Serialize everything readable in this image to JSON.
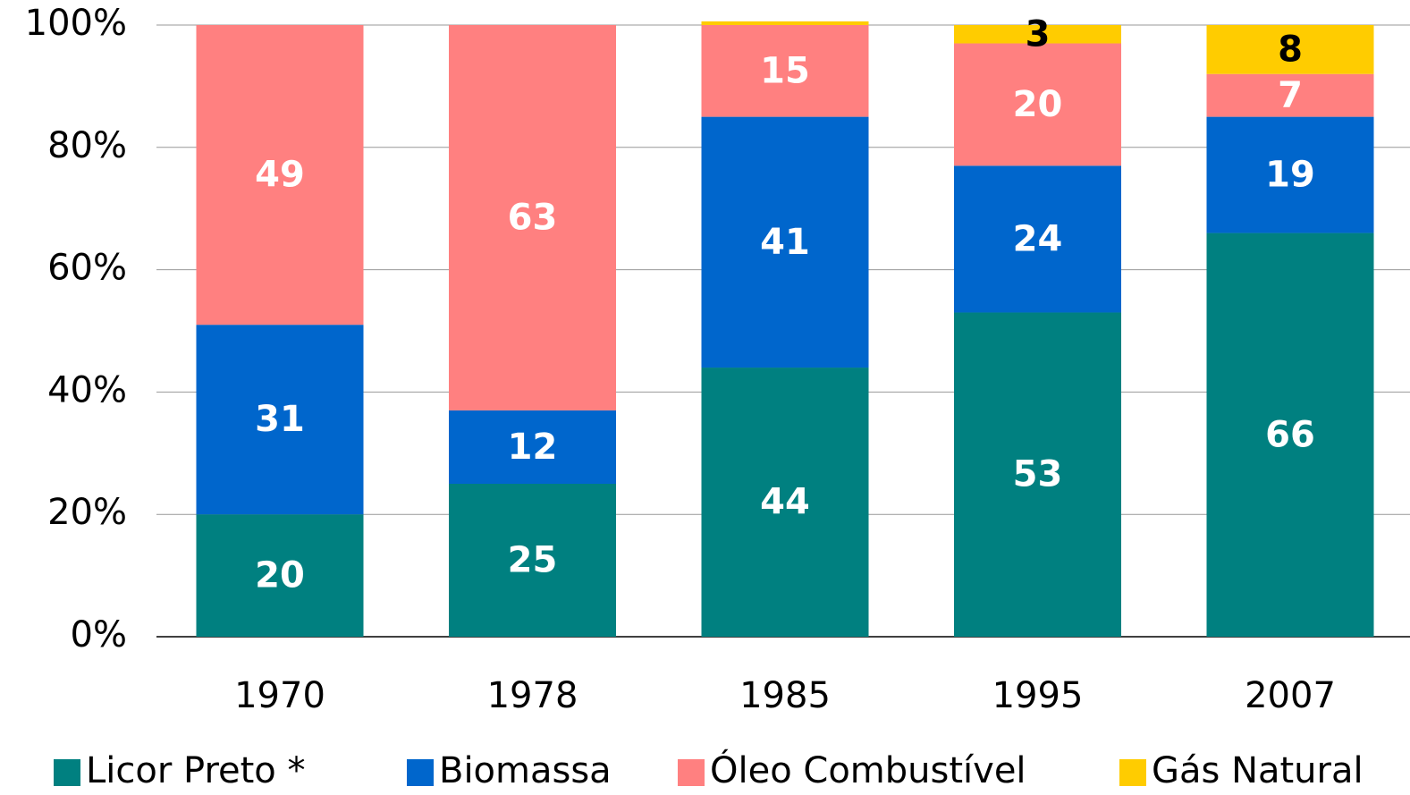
{
  "chart_data": {
    "type": "stacked_bar",
    "categories": [
      "1970",
      "1978",
      "1985",
      "1995",
      "2007"
    ],
    "series": [
      {
        "name": "Licor Preto *",
        "color": "#008080",
        "values": [
          20,
          25,
          44,
          53,
          66
        ]
      },
      {
        "name": "Biomassa",
        "color": "#0066CC",
        "values": [
          31,
          12,
          41,
          24,
          19
        ]
      },
      {
        "name": "Óleo Combustível",
        "color": "#FF8080",
        "values": [
          49,
          63,
          15,
          20,
          7
        ]
      },
      {
        "name": "Gás Natural",
        "color": "#FFCC00",
        "values": [
          0,
          0,
          0.6,
          3,
          8
        ]
      }
    ],
    "ylim": [
      0,
      100
    ],
    "yticks": [
      {
        "value": 0,
        "label": "0%"
      },
      {
        "value": 20,
        "label": "20%"
      },
      {
        "value": 40,
        "label": "40%"
      },
      {
        "value": 60,
        "label": "60%"
      },
      {
        "value": 80,
        "label": "80%"
      },
      {
        "value": 100,
        "label": "100%"
      }
    ],
    "grid": true,
    "legend": "bottom"
  }
}
